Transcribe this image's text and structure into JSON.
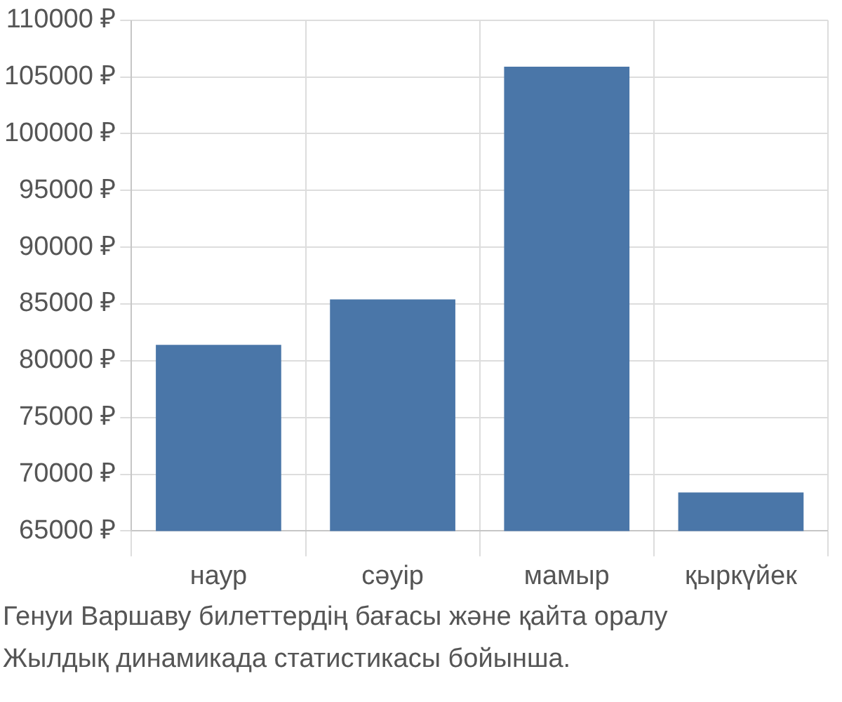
{
  "chart_data": {
    "type": "bar",
    "categories": [
      "наур",
      "сәуір",
      "мамыр",
      "қыркүйек"
    ],
    "values": [
      81400,
      85400,
      105900,
      68400
    ],
    "color": "#4a76a8",
    "ylim": [
      65000,
      110000
    ],
    "yticks": [
      {
        "value": 65000,
        "label": "65000 ₽"
      },
      {
        "value": 70000,
        "label": "70000 ₽"
      },
      {
        "value": 75000,
        "label": "75000 ₽"
      },
      {
        "value": 80000,
        "label": "80000 ₽"
      },
      {
        "value": 85000,
        "label": "85000 ₽"
      },
      {
        "value": 90000,
        "label": "90000 ₽"
      },
      {
        "value": 95000,
        "label": "95000 ₽"
      },
      {
        "value": 100000,
        "label": "100000 ₽"
      },
      {
        "value": 105000,
        "label": "105000 ₽"
      },
      {
        "value": 110000,
        "label": "110000 ₽"
      }
    ],
    "grid": true,
    "annotations": [
      "Генуи Варшаву билеттердің бағасы және қайта оралу",
      "Жылдық динамикада статистикасы бойынша."
    ]
  }
}
